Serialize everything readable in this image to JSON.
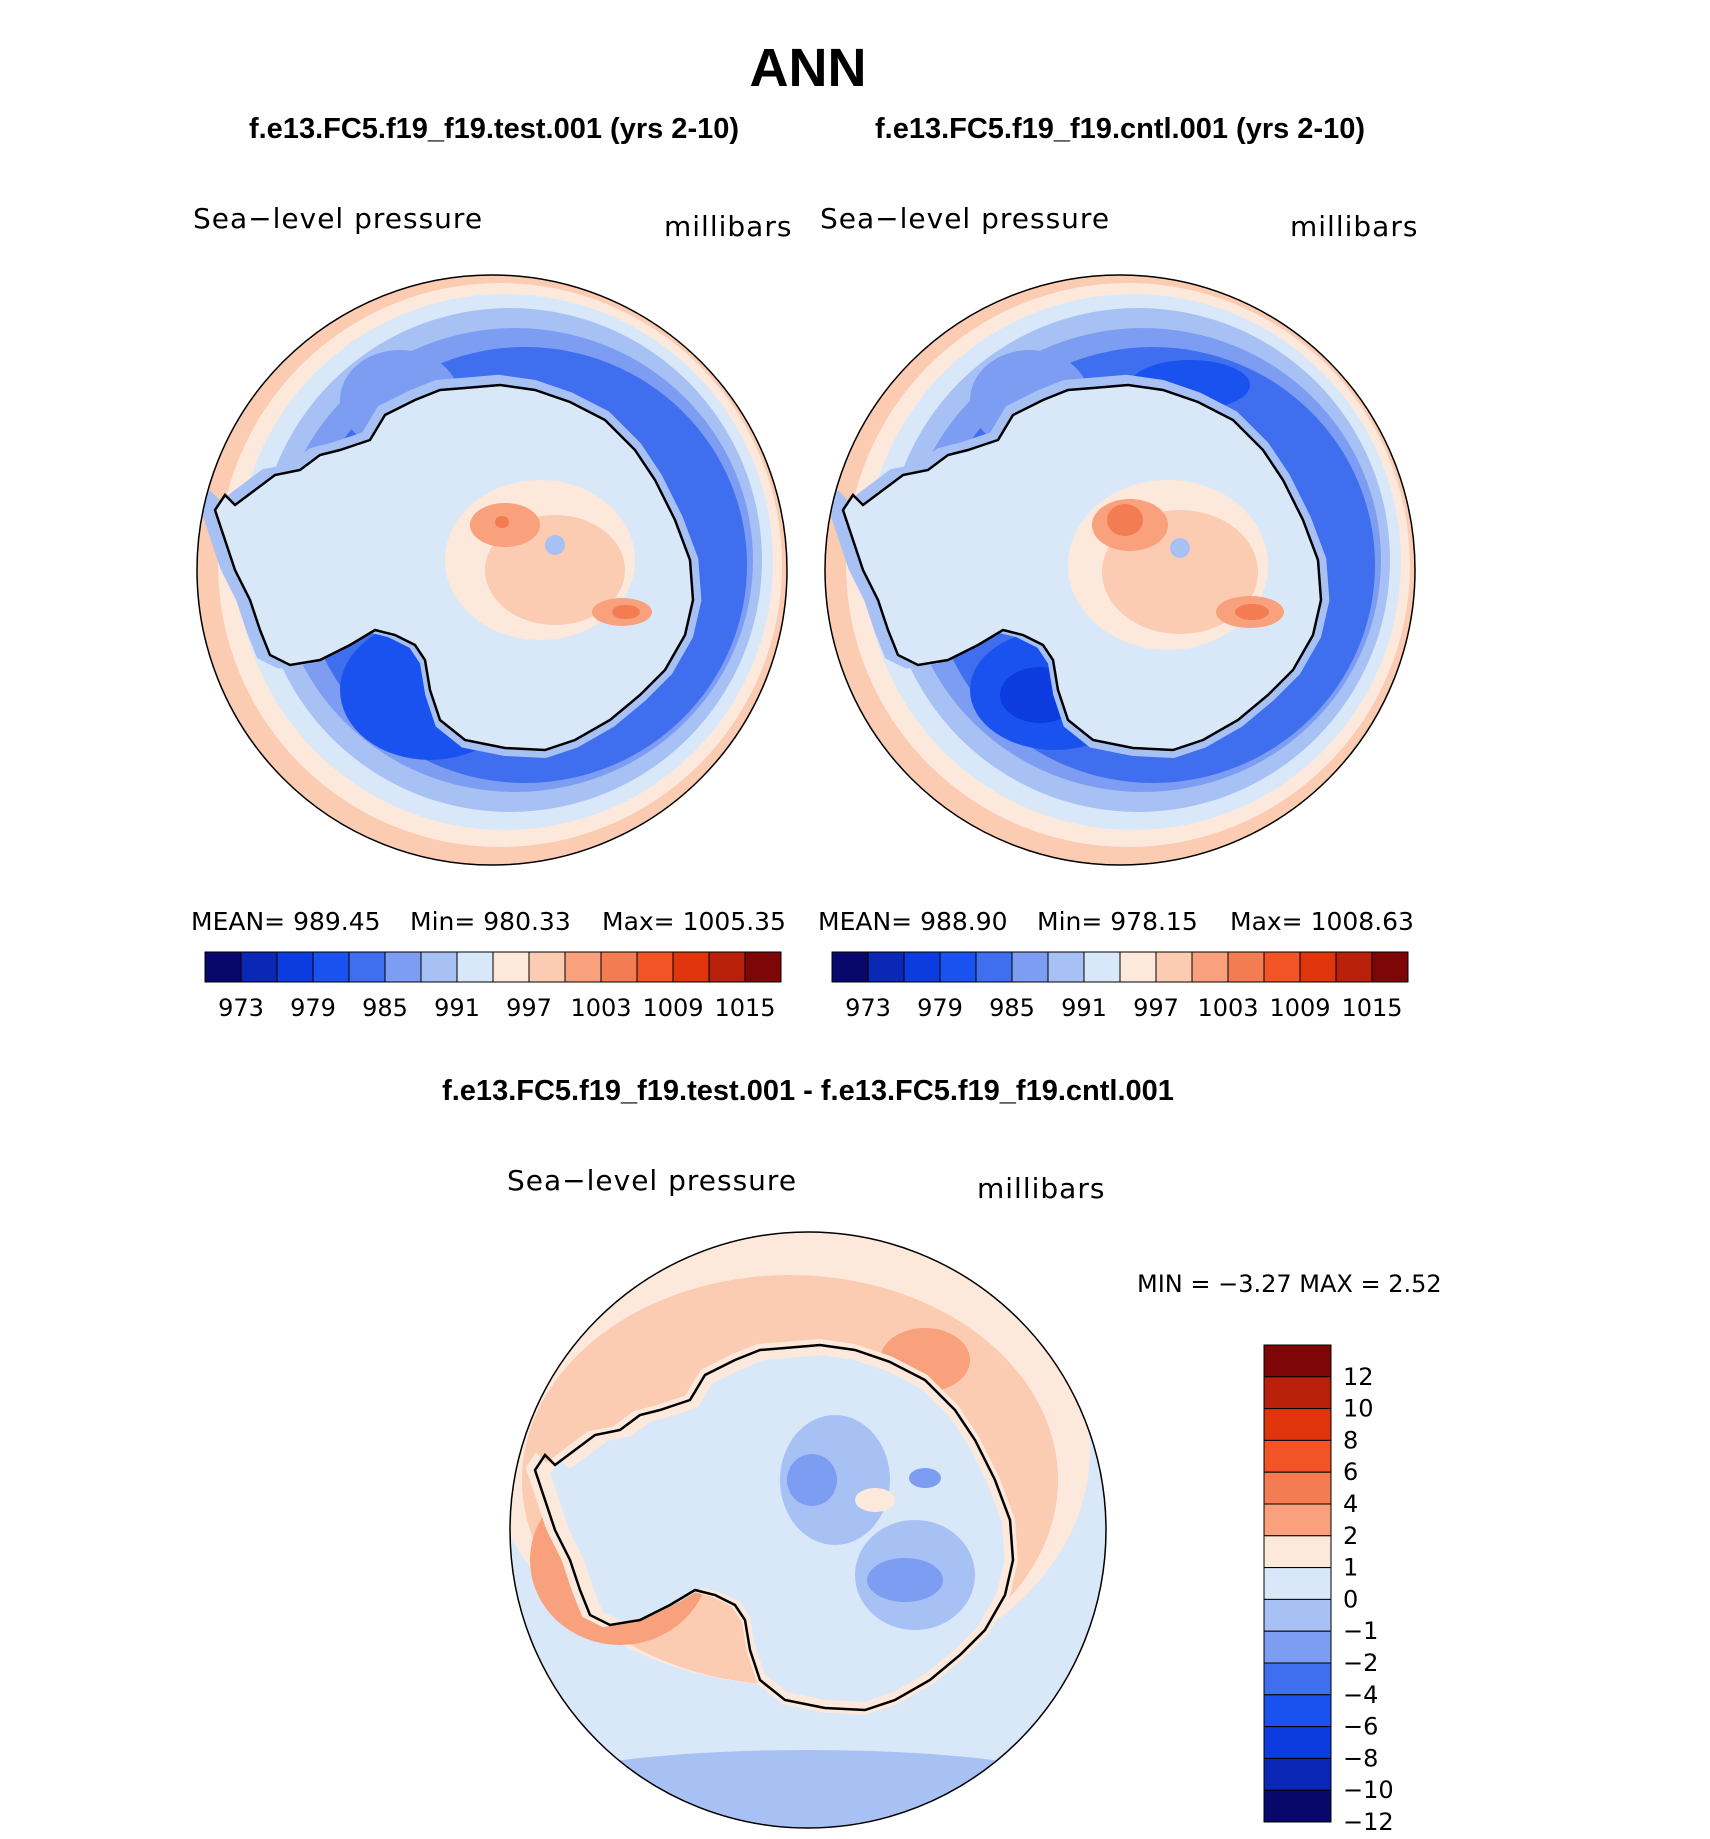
{
  "page": {
    "title": "ANN",
    "bottom_title": "f.e13.FC5.f19_f19.test.001 - f.e13.FC5.f19_f19.cntl.001"
  },
  "panels": {
    "test": {
      "case_title": "f.e13.FC5.f19_f19.test.001 (yrs 2-10)",
      "variable": "Sea−level pressure",
      "units": "millibars",
      "stats": {
        "mean": "MEAN=  989.45",
        "min": "Min=  980.33",
        "max": "Max=  1005.35"
      }
    },
    "cntl": {
      "case_title": "f.e13.FC5.f19_f19.cntl.001 (yrs 2-10)",
      "variable": "Sea−level pressure",
      "units": "millibars",
      "stats": {
        "mean": "MEAN=  988.90",
        "min": "Min=  978.15",
        "max": "Max=  1008.63"
      }
    },
    "diff": {
      "variable": "Sea−level pressure",
      "units": "millibars",
      "minmax": "MIN =   −3.27  MAX =     2.52"
    }
  },
  "colorbar_abs": {
    "colors": [
      "#08086b",
      "#0a27b5",
      "#0c3ce0",
      "#1a52f0",
      "#3f6fee",
      "#7d9df2",
      "#a8c1f5",
      "#d9e8f9",
      "#fde9dc",
      "#fbcbb2",
      "#f9a07c",
      "#f47c52",
      "#f25428",
      "#e0350c",
      "#b9200a",
      "#7f0606"
    ],
    "labels": [
      "973",
      "979",
      "985",
      "991",
      "997",
      "1003",
      "1009",
      "1015"
    ]
  },
  "colorbar_diff": {
    "colors": [
      "#7f0606",
      "#b9200a",
      "#e0350c",
      "#f25428",
      "#f47c52",
      "#f9a07c",
      "#fde9dc",
      "#d9e8f9",
      "#a8c1f5",
      "#7d9df2",
      "#3f6fee",
      "#1a52f0",
      "#0c3ce0",
      "#0a27b5",
      "#08086b"
    ],
    "labels": [
      "12",
      "10",
      "8",
      "6",
      "4",
      "2",
      "1",
      "0",
      "−1",
      "−2",
      "−4",
      "−6",
      "−8",
      "−10",
      "−12"
    ]
  },
  "map_colors": {
    "edge": "#fbcbb2",
    "pale_pos": "#fde9dc",
    "pale_neg": "#d9e8f9",
    "light_blue": "#a8c1f5",
    "mid_blue": "#7d9df2",
    "blue": "#3f6fee",
    "deep_blue": "#1a52f0",
    "navy": "#0c3ce0",
    "peach": "#fbcbb2",
    "salmon": "#f9a07c",
    "orange": "#f47c52",
    "red": "#f25428"
  }
}
